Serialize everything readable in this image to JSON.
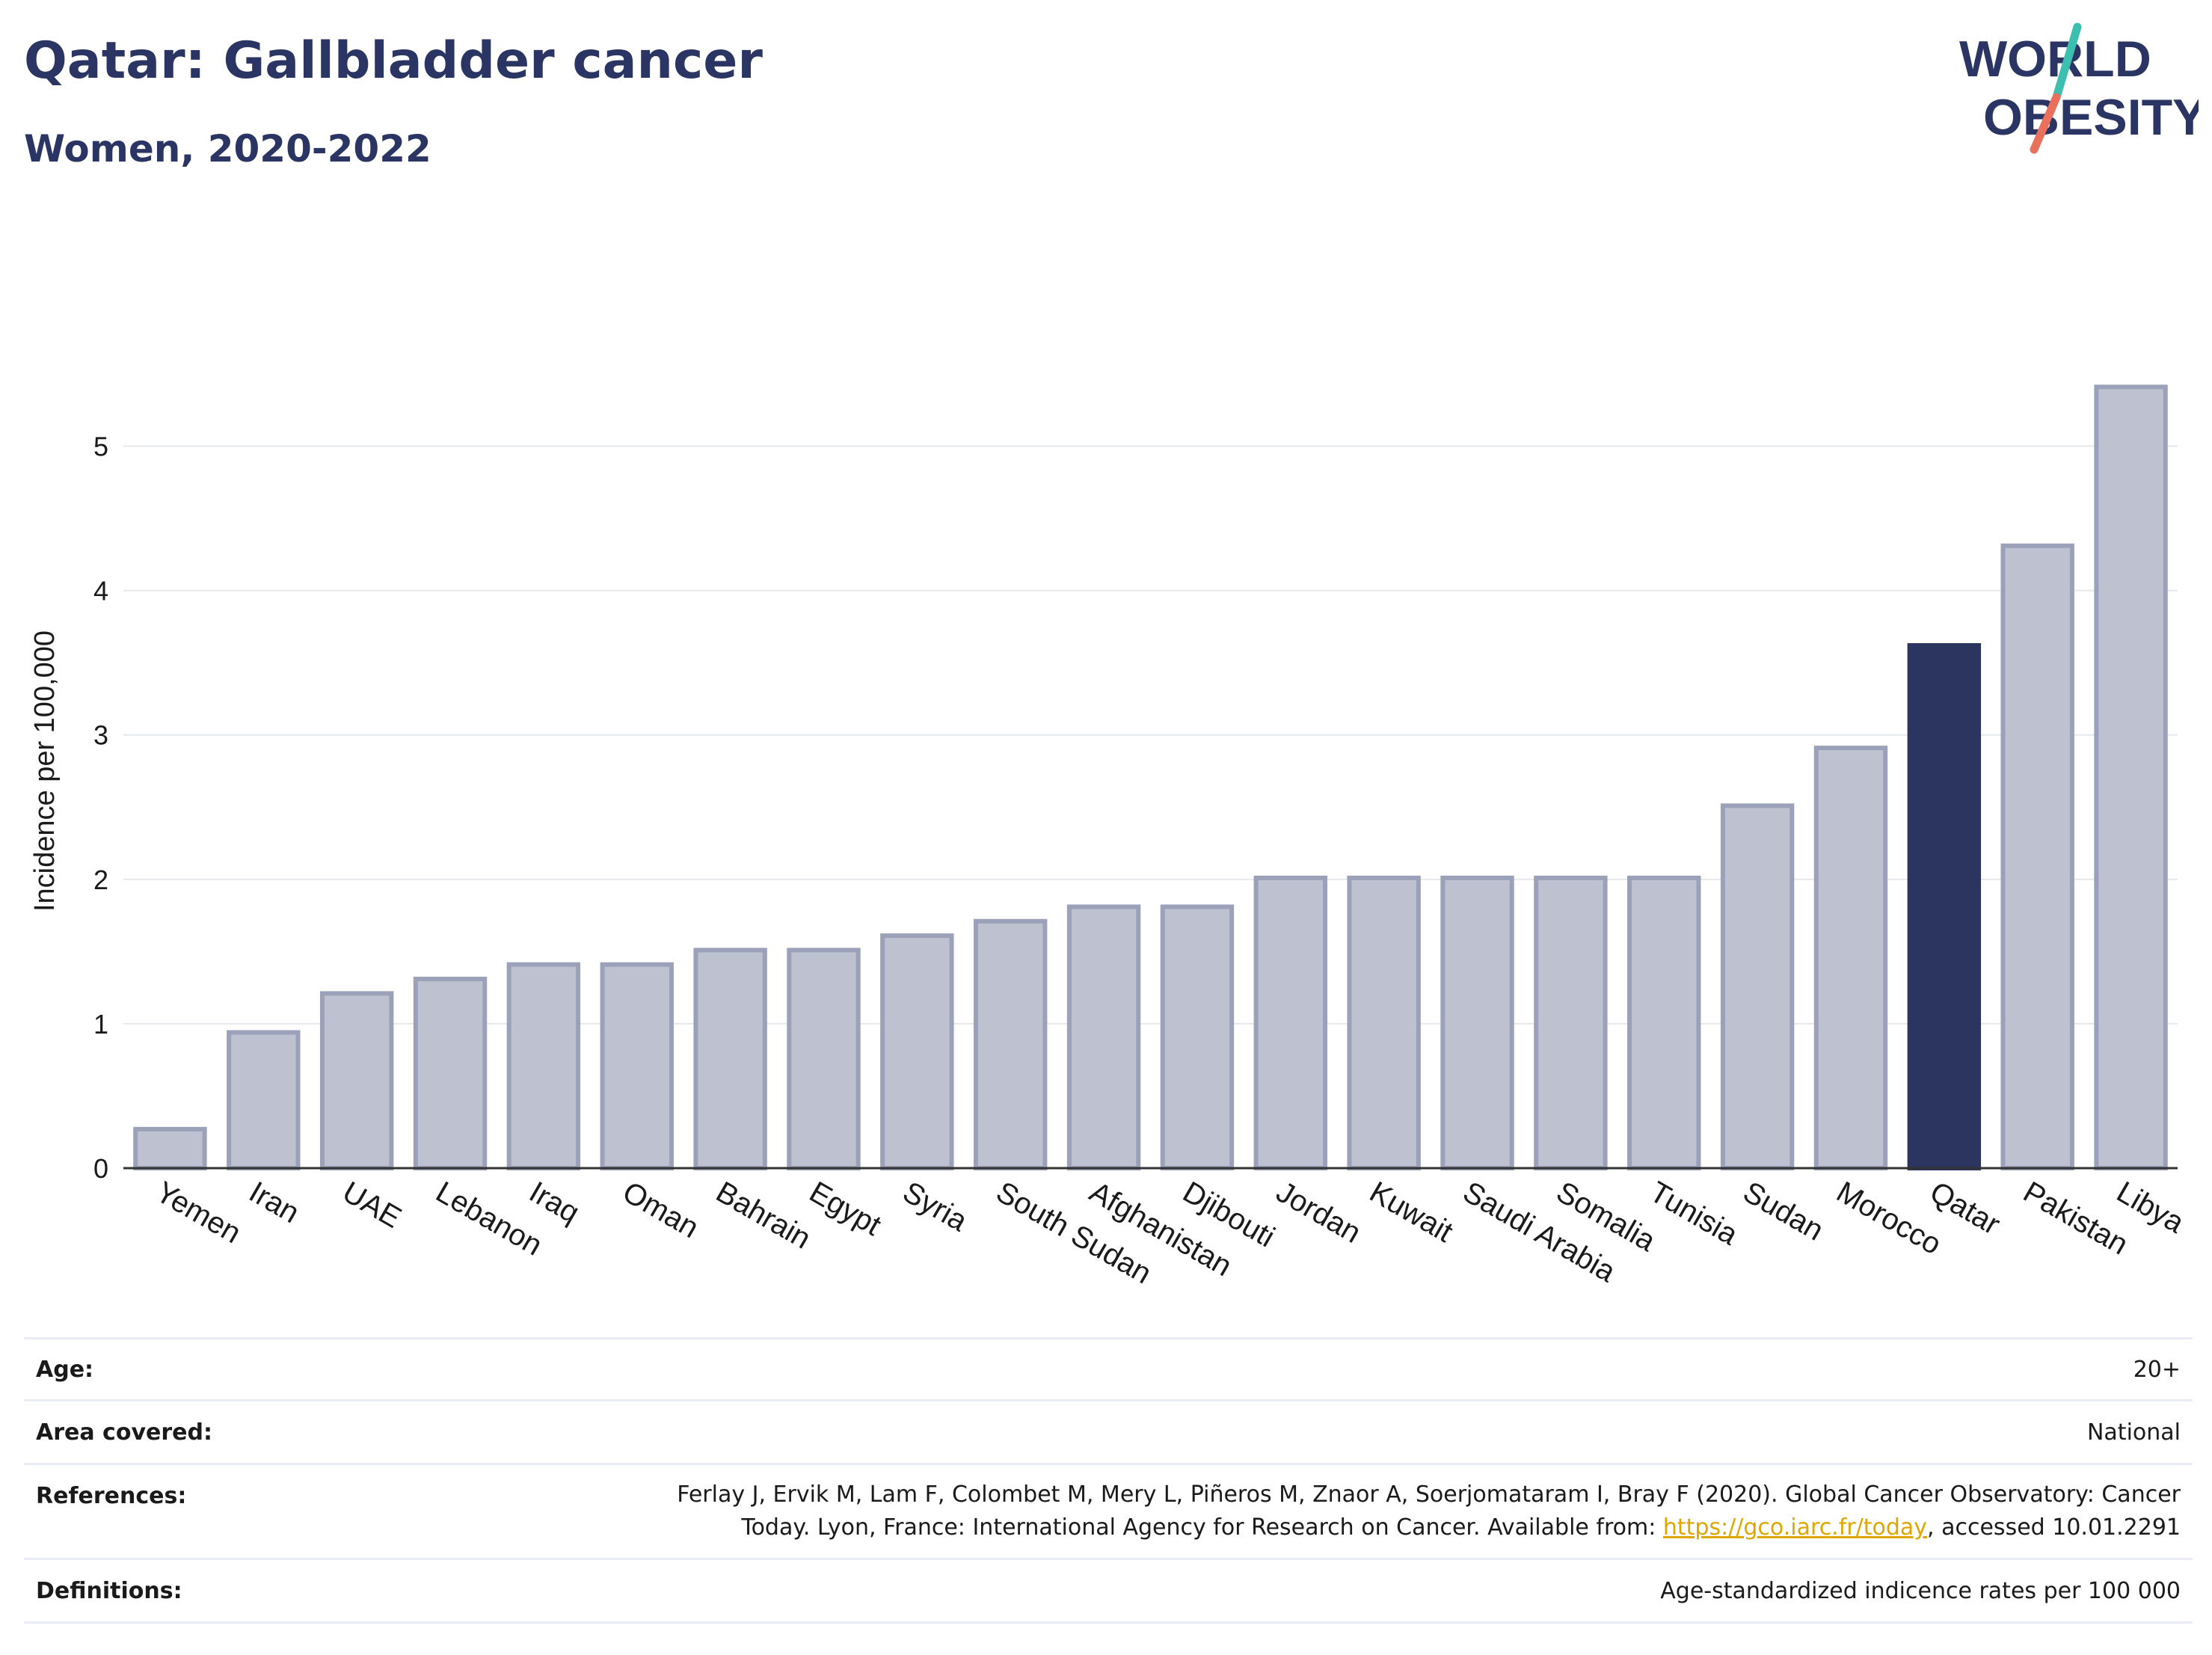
{
  "header": {
    "title": "Qatar: Gallbladder cancer",
    "subtitle": "Women, 2020-2022"
  },
  "logo": {
    "line1": "WORLD",
    "line2": "OBESITY",
    "accent_colors": [
      "#3dbfb0",
      "#e8705c"
    ]
  },
  "colors": {
    "bar": "#bec2d0",
    "bar_stroke": "#9aa1b8",
    "highlight": "#2b3560",
    "text": "#2b3564",
    "grid": "#e6e8ee",
    "link": "#e0a600"
  },
  "chart_data": {
    "type": "bar",
    "title": "",
    "xlabel": "",
    "ylabel": "Incidence per 100,000",
    "ylim": [
      0,
      5.5
    ],
    "yticks": [
      0,
      1,
      2,
      3,
      4,
      5
    ],
    "categories": [
      "Yemen",
      "Iran",
      "UAE",
      "Lebanon",
      "Iraq",
      "Oman",
      "Bahrain",
      "Egypt",
      "Syria",
      "South Sudan",
      "Afghanistan",
      "Djibouti",
      "Jordan",
      "Kuwait",
      "Saudi Arabia",
      "Somalia",
      "Tunisia",
      "Sudan",
      "Morocco",
      "Qatar",
      "Pakistan",
      "Libya"
    ],
    "values": [
      0.27,
      0.94,
      1.21,
      1.31,
      1.41,
      1.41,
      1.51,
      1.51,
      1.61,
      1.71,
      1.81,
      1.81,
      2.01,
      2.01,
      2.01,
      2.01,
      2.01,
      2.51,
      2.91,
      3.62,
      4.31,
      5.41
    ],
    "highlight": "Qatar",
    "grid": true
  },
  "meta": {
    "age_label": "Age:",
    "age_value": "20+",
    "area_label": "Area covered:",
    "area_value": "National",
    "references_label": "References:",
    "references_line1": "Ferlay J, Ervik M, Lam F, Colombet M, Mery L, Piñeros M, Znaor A, Soerjomataram I, Bray F (2020). Global Cancer Observatory: Cancer",
    "references_line2_pre": "Today. Lyon, France: International Agency for Research on Cancer. Available from: ",
    "references_link": "https://gco.iarc.fr/today",
    "references_line2_post": ", accessed 10.01.2291",
    "definitions_label": "Definitions:",
    "definitions_value": "Age-standardized indicence rates per 100 000"
  }
}
